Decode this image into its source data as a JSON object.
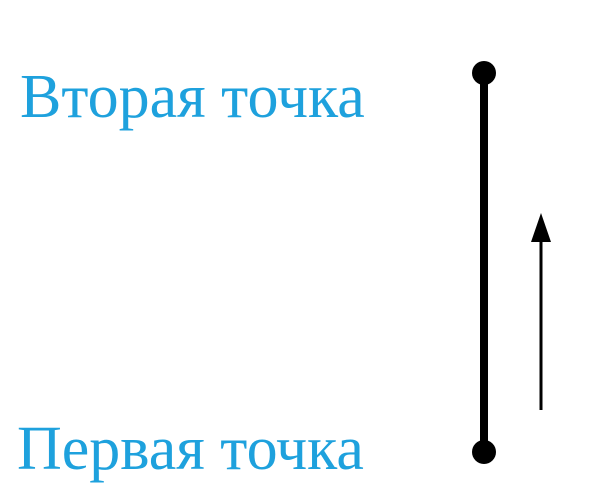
{
  "labels": {
    "second_point": "Вторая точка",
    "first_point": "Первая точка"
  },
  "colors": {
    "label_text": "#1ea1dd",
    "segment": "#000000",
    "arrow": "#000000"
  },
  "direction": "upward"
}
